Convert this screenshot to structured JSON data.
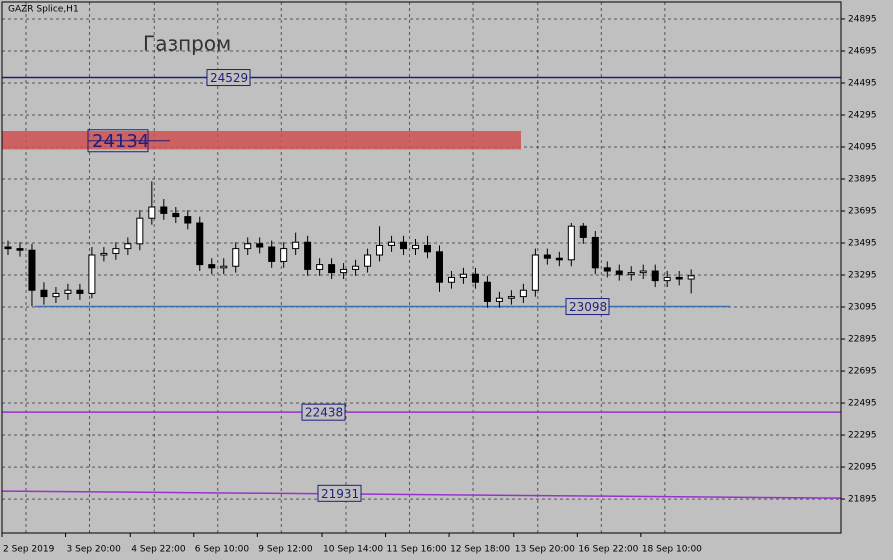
{
  "chart_data": {
    "type": "candlestick",
    "title": "GAZR Splice,H1",
    "annotation": "Газпром",
    "open": [
      23470,
      23460,
      23450,
      23200,
      23160,
      23180,
      23200,
      23180,
      23420,
      23430,
      23460,
      23490,
      23650,
      23720,
      23680,
      23660,
      23620,
      23360,
      23340,
      23350,
      23460,
      23490,
      23470,
      23380,
      23460,
      23500,
      23330,
      23360,
      23310,
      23330,
      23350,
      23420,
      23480,
      23500,
      23460,
      23480,
      23440,
      23250,
      23280,
      23300,
      23250,
      23130,
      23150,
      23160,
      23200,
      23420,
      23400,
      23390,
      23600,
      23530,
      23340,
      23320,
      23300,
      23310,
      23320,
      23260,
      23280,
      23270
    ],
    "high": [
      23510,
      23500,
      23490,
      23250,
      23220,
      23240,
      23240,
      23470,
      23470,
      23500,
      23530,
      23700,
      23880,
      23770,
      23720,
      23700,
      23660,
      23400,
      23400,
      23500,
      23530,
      23530,
      23510,
      23500,
      23560,
      23540,
      23400,
      23400,
      23370,
      23390,
      23460,
      23600,
      23540,
      23540,
      23520,
      23540,
      23480,
      23320,
      23340,
      23340,
      23290,
      23190,
      23200,
      23240,
      23460,
      23460,
      23440,
      23620,
      23620,
      23570,
      23380,
      23360,
      23350,
      23360,
      23360,
      23320,
      23320,
      23330
    ],
    "low": [
      23420,
      23410,
      23100,
      23110,
      23120,
      23140,
      23140,
      23150,
      23380,
      23390,
      23420,
      23450,
      23610,
      23640,
      23620,
      23580,
      23320,
      23300,
      23300,
      23310,
      23420,
      23430,
      23340,
      23340,
      23420,
      23290,
      23290,
      23270,
      23270,
      23290,
      23310,
      23380,
      23440,
      23420,
      23420,
      23400,
      23190,
      23210,
      23240,
      23210,
      23090,
      23090,
      23110,
      23120,
      23160,
      23360,
      23350,
      23350,
      23490,
      23300,
      23280,
      23260,
      23260,
      23270,
      23220,
      23220,
      23230,
      23180
    ],
    "close": [
      23460,
      23450,
      23200,
      23160,
      23180,
      23200,
      23180,
      23420,
      23430,
      23460,
      23490,
      23650,
      23720,
      23680,
      23660,
      23620,
      23360,
      23340,
      23350,
      23460,
      23490,
      23470,
      23380,
      23460,
      23500,
      23330,
      23360,
      23310,
      23330,
      23350,
      23420,
      23480,
      23500,
      23460,
      23480,
      23440,
      23250,
      23280,
      23300,
      23250,
      23130,
      23150,
      23160,
      23200,
      23420,
      23400,
      23390,
      23600,
      23530,
      23340,
      23320,
      23300,
      23310,
      23320,
      23260,
      23280,
      23270,
      23290
    ],
    "xlim": [
      0,
      70
    ],
    "xticks": [
      {
        "value": 0,
        "label": "2 Sep 2019"
      },
      {
        "value": 5.3,
        "label": "3 Sep 20:00"
      },
      {
        "value": 10.7,
        "label": "4 Sep 22:00"
      },
      {
        "value": 16,
        "label": "6 Sep 10:00"
      },
      {
        "value": 21.3,
        "label": "9 Sep 12:00"
      },
      {
        "value": 26.7,
        "label": "10 Sep 14:00"
      },
      {
        "value": 32,
        "label": "11 Sep 16:00"
      },
      {
        "value": 37.3,
        "label": "12 Sep 18:00"
      },
      {
        "value": 42.7,
        "label": "13 Sep 20:00"
      },
      {
        "value": 48,
        "label": "16 Sep 22:00"
      },
      {
        "value": 53.3,
        "label": "18 Sep 10:00"
      }
    ],
    "ylim": [
      21683,
      25001
    ],
    "yticks": [
      24895,
      24695,
      24495,
      24295,
      24095,
      23895,
      23695,
      23495,
      23295,
      23095,
      22895,
      22695,
      22495,
      22295,
      22095,
      21895
    ],
    "grid": true,
    "levels": [
      {
        "value": 24529,
        "color": "#1f1f7a"
      },
      {
        "value": 24134,
        "color": "#d05050",
        "band": [
          24080,
          24195
        ]
      },
      {
        "value": 23098,
        "color": "#3a6fb0"
      },
      {
        "value": 22438,
        "color": "#9932cc"
      },
      {
        "value": 21931,
        "color": "#9932cc",
        "ends": [
          21945,
          21901
        ]
      }
    ]
  }
}
